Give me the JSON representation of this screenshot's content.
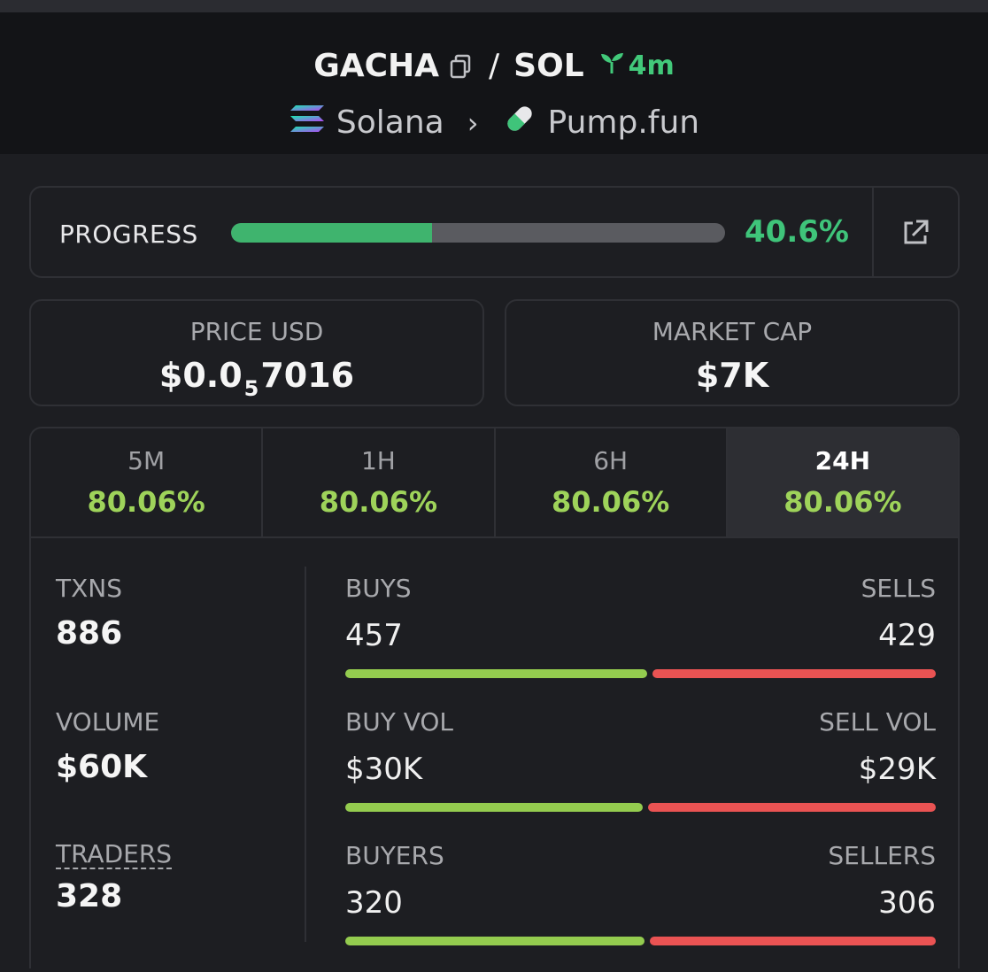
{
  "header": {
    "token": "GACHA",
    "quote": "SOL",
    "separator": "/",
    "age": "4m",
    "chain": "Solana",
    "dex": "Pump.fun",
    "icons": [
      "copy-icon",
      "sprout-icon",
      "solana-logo",
      "chevron-right-icon",
      "pill-icon"
    ]
  },
  "progress": {
    "label": "PROGRESS",
    "value_text": "40.6%",
    "fraction": 0.406
  },
  "price": {
    "label": "PRICE USD",
    "prefix": "$0.0",
    "zeros": "5",
    "digits": "7016"
  },
  "mcap": {
    "label": "MARKET CAP",
    "value": "$7K"
  },
  "tabs": [
    {
      "label": "5M",
      "value": "80.06%"
    },
    {
      "label": "1H",
      "value": "80.06%"
    },
    {
      "label": "6H",
      "value": "80.06%"
    },
    {
      "label": "24H",
      "value": "80.06%",
      "active": true
    }
  ],
  "metrics": {
    "txns": {
      "label": "TXNS",
      "value": "886"
    },
    "volume": {
      "label": "VOLUME",
      "value": "$60K"
    },
    "traders": {
      "label": "TRADERS",
      "value": "328"
    }
  },
  "splits": {
    "txns": {
      "left_label": "BUYS",
      "right_label": "SELLS",
      "left_value": "457",
      "right_value": "429",
      "left_share": 0.516
    },
    "volume": {
      "left_label": "BUY VOL",
      "right_label": "SELL VOL",
      "left_value": "$30K",
      "right_value": "$29K",
      "left_share": 0.508
    },
    "traders": {
      "left_label": "BUYERS",
      "right_label": "SELLERS",
      "left_value": "320",
      "right_value": "306",
      "left_share": 0.511
    }
  },
  "colors": {
    "accent_green": "#3fb46e",
    "pct_green": "#9ed35a",
    "buy": "#94cc4f",
    "sell": "#ea5353"
  }
}
